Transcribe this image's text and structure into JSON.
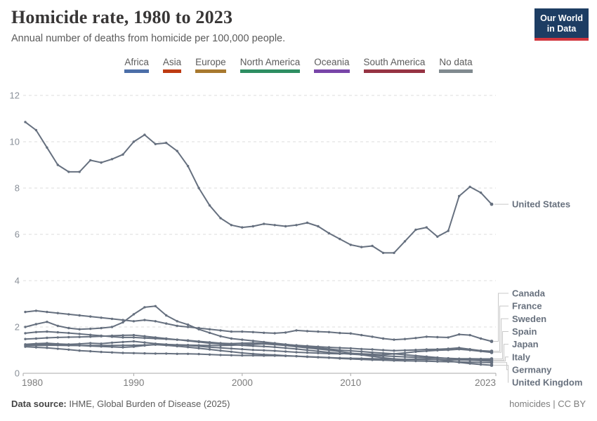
{
  "header": {
    "title": "Homicide rate, 1980 to 2023",
    "subtitle": "Annual number of deaths from homicide per 100,000 people.",
    "logo_line1": "Our World",
    "logo_line2": "in Data"
  },
  "legend": {
    "items": [
      {
        "label": "Africa",
        "color": "#4C6EA8"
      },
      {
        "label": "Asia",
        "color": "#BE3B12"
      },
      {
        "label": "Europe",
        "color": "#A8792F"
      },
      {
        "label": "North America",
        "color": "#2E8E62"
      },
      {
        "label": "Oceania",
        "color": "#7845A8"
      },
      {
        "label": "South America",
        "color": "#963343"
      },
      {
        "label": "No data",
        "color": "#808A8F"
      }
    ]
  },
  "chart_data": {
    "type": "line",
    "title": "Homicide rate, 1980 to 2023",
    "xlabel": "",
    "ylabel": "",
    "xlim": [
      1980,
      2023
    ],
    "ylim": [
      0,
      12
    ],
    "xticks": [
      1980,
      1990,
      2000,
      2010,
      2023
    ],
    "yticks": [
      0,
      2,
      4,
      6,
      8,
      10,
      12
    ],
    "grid": true,
    "legend_position": "end-of-line-labels",
    "line_color": "#66707F",
    "x": [
      1980,
      1981,
      1982,
      1983,
      1984,
      1985,
      1986,
      1987,
      1988,
      1989,
      1990,
      1991,
      1992,
      1993,
      1994,
      1995,
      1996,
      1997,
      1998,
      1999,
      2000,
      2001,
      2002,
      2003,
      2004,
      2005,
      2006,
      2007,
      2008,
      2009,
      2010,
      2011,
      2012,
      2013,
      2014,
      2015,
      2016,
      2017,
      2018,
      2019,
      2020,
      2021,
      2022,
      2023
    ],
    "series": [
      {
        "name": "United States",
        "values": [
          10.85,
          10.5,
          9.75,
          9.0,
          8.7,
          8.7,
          9.2,
          9.1,
          9.25,
          9.45,
          10.0,
          10.3,
          9.9,
          9.95,
          9.6,
          8.95,
          8.0,
          7.25,
          6.7,
          6.4,
          6.3,
          6.35,
          6.45,
          6.4,
          6.35,
          6.4,
          6.5,
          6.35,
          6.05,
          5.8,
          5.55,
          5.45,
          5.5,
          5.2,
          5.2,
          5.7,
          6.2,
          6.3,
          5.9,
          6.15,
          7.65,
          8.05,
          7.8,
          7.3
        ]
      },
      {
        "name": "Canada",
        "values": [
          2.65,
          2.7,
          2.65,
          2.6,
          2.55,
          2.5,
          2.45,
          2.4,
          2.35,
          2.3,
          2.25,
          2.3,
          2.25,
          2.15,
          2.05,
          2.0,
          1.95,
          1.9,
          1.85,
          1.8,
          1.8,
          1.78,
          1.75,
          1.73,
          1.76,
          1.85,
          1.82,
          1.8,
          1.78,
          1.74,
          1.72,
          1.65,
          1.58,
          1.5,
          1.45,
          1.48,
          1.52,
          1.58,
          1.56,
          1.55,
          1.68,
          1.65,
          1.5,
          1.38
        ]
      },
      {
        "name": "France",
        "values": [
          1.73,
          1.78,
          1.8,
          1.77,
          1.74,
          1.7,
          1.66,
          1.62,
          1.58,
          1.55,
          1.55,
          1.52,
          1.5,
          1.48,
          1.45,
          1.42,
          1.38,
          1.34,
          1.3,
          1.28,
          1.3,
          1.31,
          1.29,
          1.27,
          1.24,
          1.21,
          1.18,
          1.15,
          1.12,
          1.1,
          1.08,
          1.05,
          1.03,
          1.0,
          0.98,
          0.99,
          1.01,
          1.03,
          1.04,
          1.06,
          1.1,
          1.04,
          0.98,
          0.95
        ]
      },
      {
        "name": "Sweden",
        "values": [
          1.25,
          1.28,
          1.3,
          1.27,
          1.25,
          1.27,
          1.3,
          1.28,
          1.32,
          1.35,
          1.38,
          1.33,
          1.28,
          1.25,
          1.22,
          1.2,
          1.17,
          1.13,
          1.1,
          1.07,
          1.04,
          1.01,
          0.99,
          0.97,
          0.94,
          0.91,
          0.89,
          0.87,
          0.85,
          0.84,
          0.86,
          0.84,
          0.82,
          0.8,
          0.84,
          0.88,
          0.93,
          0.96,
          0.99,
          1.01,
          1.04,
          1.0,
          0.95,
          0.9
        ]
      },
      {
        "name": "Spain",
        "values": [
          1.48,
          1.5,
          1.53,
          1.55,
          1.56,
          1.57,
          1.58,
          1.6,
          1.62,
          1.64,
          1.65,
          1.6,
          1.55,
          1.5,
          1.45,
          1.4,
          1.35,
          1.3,
          1.27,
          1.24,
          1.21,
          1.18,
          1.16,
          1.13,
          1.09,
          1.05,
          1.0,
          0.95,
          0.9,
          0.86,
          0.83,
          0.8,
          0.78,
          0.75,
          0.73,
          0.71,
          0.69,
          0.67,
          0.66,
          0.65,
          0.63,
          0.63,
          0.62,
          0.62
        ]
      },
      {
        "name": "Japan",
        "values": [
          1.15,
          1.12,
          1.1,
          1.06,
          1.02,
          0.98,
          0.95,
          0.92,
          0.9,
          0.88,
          0.87,
          0.86,
          0.85,
          0.85,
          0.84,
          0.84,
          0.83,
          0.81,
          0.79,
          0.78,
          0.77,
          0.77,
          0.76,
          0.76,
          0.75,
          0.74,
          0.72,
          0.7,
          0.68,
          0.66,
          0.65,
          0.64,
          0.63,
          0.62,
          0.61,
          0.6,
          0.6,
          0.59,
          0.59,
          0.58,
          0.58,
          0.57,
          0.57,
          0.57
        ]
      },
      {
        "name": "Italy",
        "values": [
          2.0,
          2.12,
          2.22,
          2.05,
          1.95,
          1.9,
          1.92,
          1.95,
          2.0,
          2.2,
          2.55,
          2.85,
          2.9,
          2.5,
          2.25,
          2.1,
          1.9,
          1.75,
          1.6,
          1.5,
          1.45,
          1.4,
          1.35,
          1.3,
          1.25,
          1.2,
          1.15,
          1.1,
          1.05,
          1.0,
          0.97,
          0.94,
          0.9,
          0.87,
          0.84,
          0.8,
          0.76,
          0.72,
          0.68,
          0.64,
          0.6,
          0.57,
          0.55,
          0.53
        ]
      },
      {
        "name": "Germany",
        "values": [
          1.22,
          1.24,
          1.26,
          1.24,
          1.22,
          1.2,
          1.18,
          1.16,
          1.14,
          1.12,
          1.15,
          1.2,
          1.24,
          1.21,
          1.17,
          1.13,
          1.08,
          1.03,
          0.98,
          0.93,
          0.88,
          0.84,
          0.81,
          0.79,
          0.76,
          0.74,
          0.71,
          0.69,
          0.67,
          0.64,
          0.62,
          0.6,
          0.58,
          0.57,
          0.55,
          0.54,
          0.53,
          0.52,
          0.51,
          0.5,
          0.49,
          0.48,
          0.47,
          0.46
        ]
      },
      {
        "name": "United Kingdom",
        "values": [
          1.2,
          1.2,
          1.21,
          1.21,
          1.2,
          1.2,
          1.2,
          1.2,
          1.2,
          1.21,
          1.21,
          1.22,
          1.24,
          1.24,
          1.23,
          1.22,
          1.21,
          1.2,
          1.2,
          1.21,
          1.23,
          1.25,
          1.27,
          1.24,
          1.2,
          1.15,
          1.1,
          1.05,
          1.0,
          0.94,
          0.87,
          0.8,
          0.73,
          0.67,
          0.62,
          0.6,
          0.61,
          0.61,
          0.59,
          0.54,
          0.47,
          0.42,
          0.38,
          0.35
        ]
      }
    ]
  },
  "footer": {
    "source_label": "Data source:",
    "source_text": " IHME, Global Burden of Disease (2025)",
    "right_text": "homicides | CC BY"
  }
}
